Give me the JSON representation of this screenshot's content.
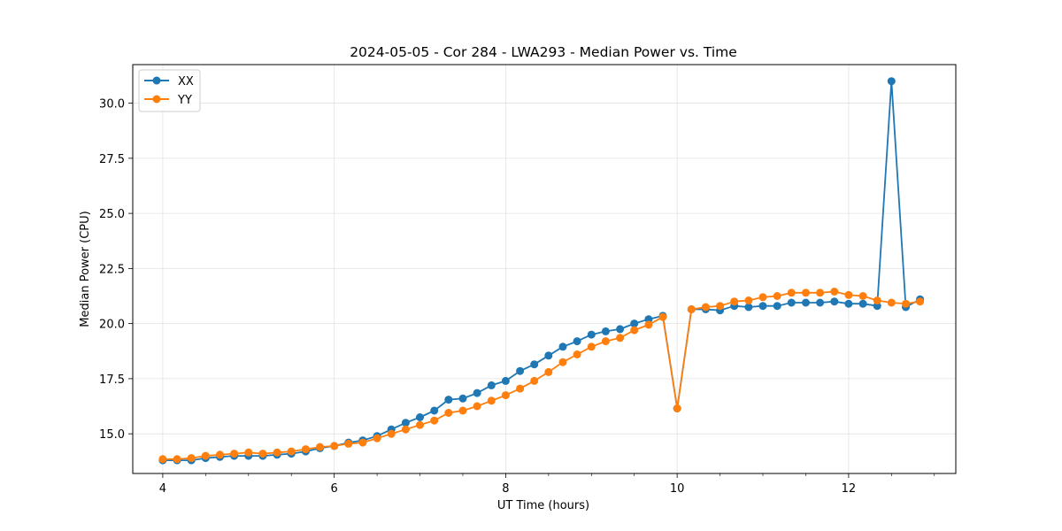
{
  "chart_data": {
    "type": "line",
    "title": "2024-05-05 - Cor 284 - LWA293 - Median Power vs. Time",
    "xlabel": "UT Time (hours)",
    "ylabel": "Median Power (CPU)",
    "xlim": [
      3.65,
      13.25
    ],
    "ylim": [
      13.2,
      31.75
    ],
    "xticks": [
      4,
      6,
      8,
      10,
      12
    ],
    "yticks": [
      15.0,
      17.5,
      20.0,
      22.5,
      25.0,
      27.5,
      30.0
    ],
    "xtick_labels": [
      "4",
      "6",
      "8",
      "10",
      "12"
    ],
    "ytick_labels": [
      "15.0",
      "17.5",
      "20.0",
      "22.5",
      "25.0",
      "27.5",
      "30.0"
    ],
    "grid": true,
    "legend_position": "top-left",
    "x": [
      4.0,
      4.1667,
      4.3333,
      4.5,
      4.6667,
      4.8333,
      5.0,
      5.1667,
      5.3333,
      5.5,
      5.6667,
      5.8333,
      6.0,
      6.1667,
      6.3333,
      6.5,
      6.6667,
      6.8333,
      7.0,
      7.1667,
      7.3333,
      7.5,
      7.6667,
      7.8333,
      8.0,
      8.1667,
      8.3333,
      8.5,
      8.6667,
      8.8333,
      9.0,
      9.1667,
      9.3333,
      9.5,
      9.6667,
      9.8333,
      10.0,
      10.1667,
      10.3333,
      10.5,
      10.6667,
      10.8333,
      11.0,
      11.1667,
      11.3333,
      11.5,
      11.6667,
      11.8333,
      12.0,
      12.1667,
      12.3333,
      12.5,
      12.6667,
      12.8333
    ],
    "series": [
      {
        "name": "XX",
        "color": "#1f77b4",
        "values": [
          13.8,
          13.8,
          13.8,
          13.9,
          13.95,
          14.0,
          14.0,
          14.0,
          14.05,
          14.1,
          14.2,
          14.35,
          14.45,
          14.6,
          14.7,
          14.9,
          15.2,
          15.5,
          15.75,
          16.05,
          16.55,
          16.6,
          16.85,
          17.2,
          17.4,
          17.85,
          18.15,
          18.55,
          18.95,
          19.2,
          19.5,
          19.65,
          19.75,
          20.0,
          20.2,
          20.35,
          16.15,
          20.65,
          20.65,
          20.6,
          20.8,
          20.75,
          20.8,
          20.8,
          20.95,
          20.95,
          20.95,
          21.0,
          20.9,
          20.9,
          20.8,
          31.0,
          20.75,
          21.1
        ]
      },
      {
        "name": "YY",
        "color": "#ff7f0e",
        "values": [
          13.85,
          13.85,
          13.9,
          14.0,
          14.05,
          14.1,
          14.15,
          14.1,
          14.15,
          14.2,
          14.3,
          14.4,
          14.45,
          14.55,
          14.6,
          14.8,
          15.0,
          15.2,
          15.4,
          15.6,
          15.95,
          16.05,
          16.25,
          16.5,
          16.75,
          17.05,
          17.4,
          17.8,
          18.25,
          18.6,
          18.95,
          19.2,
          19.35,
          19.7,
          19.95,
          20.3,
          16.15,
          20.65,
          20.75,
          20.8,
          21.0,
          21.05,
          21.2,
          21.25,
          21.4,
          21.4,
          21.4,
          21.45,
          21.3,
          21.25,
          21.05,
          20.95,
          20.9,
          21.0
        ]
      }
    ]
  }
}
